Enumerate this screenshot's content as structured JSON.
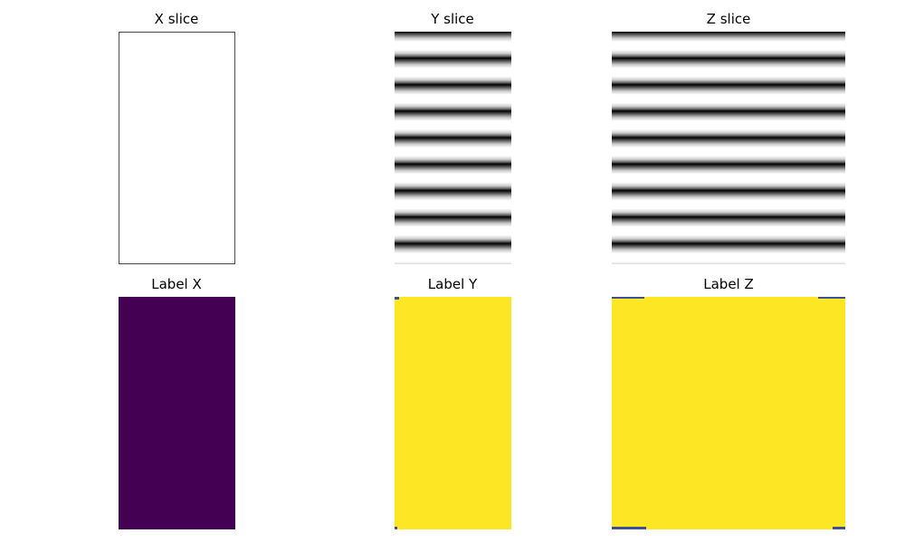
{
  "panels": {
    "x_slice": {
      "title": "X slice"
    },
    "y_slice": {
      "title": "Y slice"
    },
    "z_slice": {
      "title": "Z slice"
    },
    "label_x": {
      "title": "Label X"
    },
    "label_y": {
      "title": "Label Y"
    },
    "label_z": {
      "title": "Label Z"
    }
  },
  "colors": {
    "label_background_class": "#440154",
    "label_foreground_class": "#fde725",
    "label_edge_class": "#3b528b",
    "slice_stripe_dark": "#000000",
    "slice_background": "#ffffff"
  }
}
